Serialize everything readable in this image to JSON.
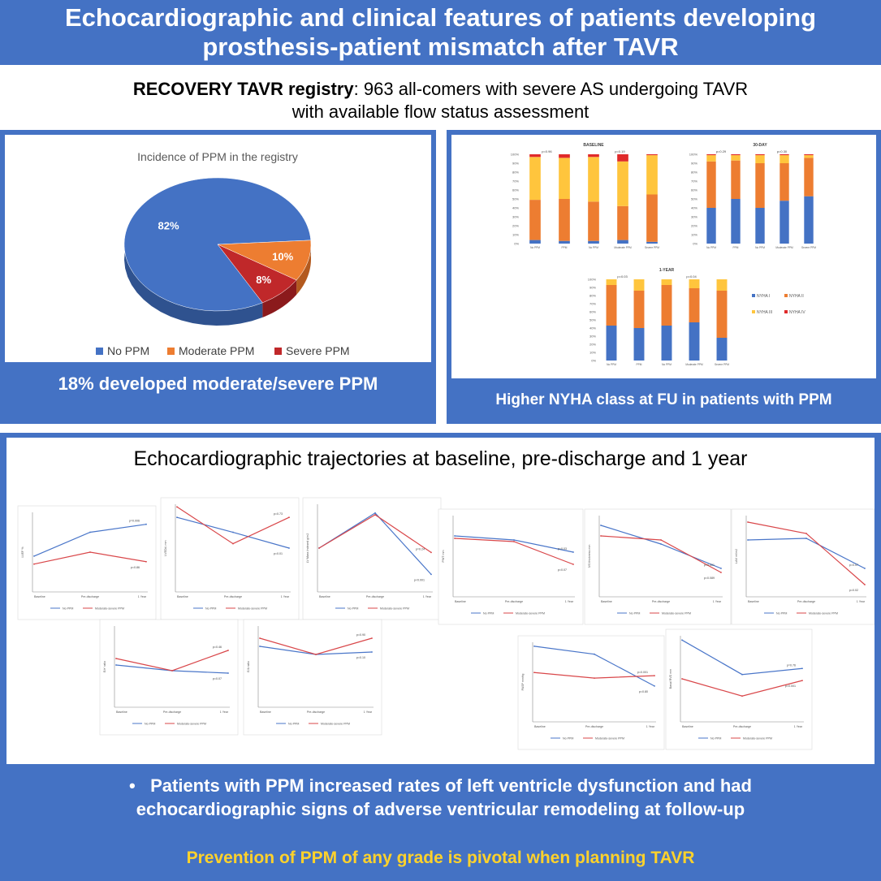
{
  "header": {
    "title_line1": "Echocardiographic and clinical features of patients developing",
    "title_line2": "prosthesis-patient mismatch after TAVR"
  },
  "registry": {
    "bold": "RECOVERY TAVR registry",
    "rest_line1": ": 963 all-comers with severe AS undergoing TAVR",
    "line2": "with available flow status assessment"
  },
  "pie_panel": {
    "caption": "18% developed moderate/severe PPM"
  },
  "nyha_panel": {
    "caption": "Higher NYHA class at FU in patients with PPM"
  },
  "echo_panel": {
    "title": "Echocardiographic trajectories at baseline, pre-discharge and 1 year"
  },
  "bottom": {
    "bullet_mark": "•",
    "bullet_line1": "Patients with PPM increased rates of left ventricle dysfunction and had",
    "bullet_line2": "echocardiographic signs of adverse ventricular remodeling at follow-up",
    "conclusion": "Prevention of PPM of any grade is pivotal when planning TAVR"
  },
  "colors": {
    "panel_blue": "#4472C4",
    "no_ppm": "#4472C4",
    "moderate_ppm": "#ED7D31",
    "severe_ppm": "#C0282A",
    "nyha_i": "#4472C4",
    "nyha_ii": "#ED7D31",
    "nyha_iii": "#FFC53D",
    "nyha_iv": "#E02A2A",
    "conclusion_yellow": "#FFD22B"
  },
  "chart_data": [
    {
      "type": "pie",
      "title": "Incidence of PPM in the registry",
      "categories": [
        "No PPM",
        "Moderate PPM",
        "Severe PPM"
      ],
      "values": [
        82,
        10,
        8
      ],
      "labels": [
        "82%",
        "10%",
        "8%"
      ],
      "legend": "bottom"
    },
    {
      "type": "bar",
      "title": "BASELINE",
      "stacked": true,
      "categories": [
        "No PPM",
        "PPM",
        "No PPM",
        "Moderate PPM",
        "Severe PPM"
      ],
      "p_values": [
        "p=0.96",
        "p=0.19"
      ],
      "ylim": [
        0,
        100
      ],
      "yticks": [
        "0%",
        "10%",
        "20%",
        "30%",
        "40%",
        "50%",
        "60%",
        "70%",
        "80%",
        "90%",
        "100%"
      ],
      "series": [
        {
          "name": "NYHA I",
          "values": [
            4,
            3,
            3,
            4,
            2
          ]
        },
        {
          "name": "NYHA II",
          "values": [
            45,
            47,
            44,
            38,
            53
          ]
        },
        {
          "name": "NYHA III",
          "values": [
            48,
            46,
            50,
            50,
            44
          ]
        },
        {
          "name": "NYHA IV",
          "values": [
            3,
            4,
            3,
            8,
            1
          ]
        }
      ]
    },
    {
      "type": "bar",
      "title": "30-DAY",
      "stacked": true,
      "categories": [
        "No PPM",
        "PPM",
        "No PPM",
        "Moderate PPM",
        "Severe PPM"
      ],
      "p_values": [
        "p=0.29",
        "p=0.30"
      ],
      "ylim": [
        0,
        100
      ],
      "yticks": [
        "0%",
        "10%",
        "20%",
        "30%",
        "40%",
        "50%",
        "60%",
        "70%",
        "80%",
        "90%",
        "100%"
      ],
      "series": [
        {
          "name": "NYHA I",
          "values": [
            40,
            50,
            40,
            48,
            53
          ]
        },
        {
          "name": "NYHA II",
          "values": [
            52,
            43,
            50,
            42,
            43
          ]
        },
        {
          "name": "NYHA III",
          "values": [
            7,
            6,
            9,
            9,
            3
          ]
        },
        {
          "name": "NYHA IV",
          "values": [
            1,
            1,
            1,
            1,
            1
          ]
        }
      ]
    },
    {
      "type": "bar",
      "title": "1-YEAR",
      "stacked": true,
      "categories": [
        "No PPM",
        "PPM",
        "No PPM",
        "Moderate PPM",
        "Severe PPM"
      ],
      "p_values": [
        "p=0.03",
        "p=0.04"
      ],
      "ylim": [
        0,
        100
      ],
      "yticks": [
        "0%",
        "10%",
        "20%",
        "30%",
        "40%",
        "50%",
        "60%",
        "70%",
        "80%",
        "90%",
        "100%"
      ],
      "series": [
        {
          "name": "NYHA I",
          "values": [
            43,
            40,
            43,
            47,
            28
          ]
        },
        {
          "name": "NYHA II",
          "values": [
            50,
            46,
            50,
            42,
            58
          ]
        },
        {
          "name": "NYHA III",
          "values": [
            7,
            14,
            7,
            11,
            14
          ]
        },
        {
          "name": "NYHA IV",
          "values": [
            0,
            0,
            0,
            0,
            0
          ]
        }
      ],
      "legend": [
        "NYHA I",
        "NYHA II",
        "NYHA III",
        "NYHA IV"
      ]
    },
    {
      "type": "line",
      "group": "echo-trajectories",
      "x": [
        "Baseline",
        "Pre-discharge",
        "1 Year"
      ],
      "legend": [
        "No PPM",
        "Moderate-severe PPM"
      ],
      "panels": [
        {
          "ylabel": "LVEF %",
          "no": [
            0.45,
            0.75,
            0.85
          ],
          "mod": [
            0.35,
            0.5,
            0.38
          ],
          "p": [
            "p=0.006",
            "p=0.86"
          ]
        },
        {
          "ylabel": "LVEDd, mm",
          "no": [
            0.85,
            0.68,
            0.5
          ],
          "mod": [
            0.97,
            0.55,
            0.85
          ],
          "p": [
            "p=0.73",
            "p=0.01"
          ]
        },
        {
          "ylabel": "LV Mass Indexed g/m2",
          "no": [
            0.5,
            0.9,
            0.2
          ],
          "mod": [
            0.5,
            0.88,
            0.45
          ],
          "p": [
            "p=0.24",
            "p<0.001"
          ]
        },
        {
          "ylabel": "PWT mm",
          "no": [
            0.75,
            0.7,
            0.55
          ],
          "mod": [
            0.72,
            0.68,
            0.4
          ],
          "p": [
            "p=0.03",
            "p=0.07"
          ]
        },
        {
          "ylabel": "IVS thickness mm",
          "no": [
            0.88,
            0.65,
            0.35
          ],
          "mod": [
            0.75,
            0.7,
            0.3
          ],
          "p": [
            "p<0.001",
            "p=0.089"
          ]
        },
        {
          "ylabel": "LAVi ml/m2",
          "no": [
            0.7,
            0.72,
            0.35
          ],
          "mod": [
            0.92,
            0.78,
            0.15
          ],
          "p": [
            "p=0.07",
            "p=0.02"
          ]
        },
        {
          "ylabel": "E/e' ratio",
          "no": [
            0.52,
            0.45,
            0.42
          ],
          "mod": [
            0.6,
            0.45,
            0.7
          ],
          "p": [
            "p=0.46",
            "p=0.07"
          ]
        },
        {
          "ylabel": "E/A ratio",
          "no": [
            0.75,
            0.65,
            0.68
          ],
          "mod": [
            0.85,
            0.65,
            0.85
          ],
          "p": [
            "p=0.90",
            "p=0.10"
          ]
        },
        {
          "ylabel": "PASP mmHg",
          "no": [
            0.95,
            0.85,
            0.45
          ],
          "mod": [
            0.62,
            0.55,
            0.58
          ],
          "p": [
            "p=0.001",
            "p=0.80"
          ]
        },
        {
          "ylabel": "Basal RVD mm",
          "no": [
            0.95,
            0.55,
            0.62
          ],
          "mod": [
            0.5,
            0.3,
            0.48
          ],
          "p": [
            "p=0.76",
            "p=0.001"
          ]
        }
      ]
    }
  ]
}
